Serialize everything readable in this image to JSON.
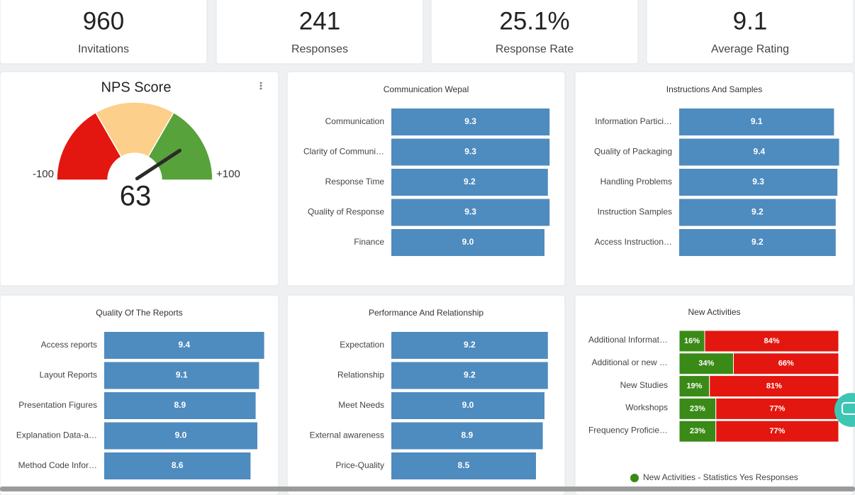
{
  "kpis": [
    {
      "value": "960",
      "label": "Invitations"
    },
    {
      "value": "241",
      "label": "Responses"
    },
    {
      "value": "25.1%",
      "label": "Response Rate"
    },
    {
      "value": "9.1",
      "label": "Average Rating"
    }
  ],
  "chart_data": [
    {
      "type": "gauge",
      "title": "NPS Score",
      "value": 63,
      "min": -100,
      "max": {
        "value": 100,
        "label": "+100"
      },
      "band_colors": [
        "#e3170f",
        "#fccf8a",
        "#57a23a"
      ],
      "needle_color": "#2b2b2b"
    },
    {
      "type": "bar",
      "title": "Communication Wepal",
      "categories": [
        "Communication",
        "Clarity of Communi…",
        "Response Time",
        "Quality of Response",
        "Finance"
      ],
      "values": [
        9.3,
        9.3,
        9.2,
        9.3,
        9.0
      ],
      "value_labels": [
        "9.3",
        "9.3",
        "9.2",
        "9.3",
        "9.0"
      ],
      "color": "#4e8bbf"
    },
    {
      "type": "bar",
      "title": "Instructions And Samples",
      "categories": [
        "Information Partici…",
        "Quality of Packaging",
        "Handling Problems",
        "Instruction Samples",
        "Access Instruction…"
      ],
      "values": [
        9.1,
        9.4,
        9.3,
        9.2,
        9.2
      ],
      "value_labels": [
        "9.1",
        "9.4",
        "9.3",
        "9.2",
        "9.2"
      ],
      "color": "#4e8bbf"
    },
    {
      "type": "bar",
      "title": "Quality Of The Reports",
      "categories": [
        "Access reports",
        "Layout Reports",
        "Presentation Figures",
        "Explanation Data-a…",
        "Method Code Infor…"
      ],
      "values": [
        9.4,
        9.1,
        8.9,
        9.0,
        8.6
      ],
      "value_labels": [
        "9.4",
        "9.1",
        "8.9",
        "9.0",
        "8.6"
      ],
      "color": "#4e8bbf"
    },
    {
      "type": "bar",
      "title": "Performance And Relationship",
      "categories": [
        "Expectation",
        "Relationship",
        "Meet Needs",
        "External awareness",
        "Price-Quality"
      ],
      "values": [
        9.2,
        9.2,
        9.0,
        8.9,
        8.5
      ],
      "value_labels": [
        "9.2",
        "9.2",
        "9.0",
        "8.9",
        "8.5"
      ],
      "color": "#4e8bbf"
    },
    {
      "type": "stacked_bar",
      "title": "New Activities",
      "categories": [
        "Additional Informat…",
        "Additional or new …",
        "New Studies",
        "Workshops",
        "Frequency Proficie…"
      ],
      "series": [
        {
          "name": "New Activities - Statistics Yes Responses",
          "color": "#3a8a17",
          "values": [
            16,
            34,
            19,
            23,
            23
          ],
          "value_labels": [
            "16%",
            "34%",
            "19%",
            "23%",
            "23%"
          ]
        },
        {
          "color": "#e3170f",
          "values": [
            84,
            66,
            81,
            77,
            77
          ],
          "value_labels": [
            "84%",
            "66%",
            "81%",
            "77%",
            "77%"
          ]
        }
      ],
      "legend": "bottom"
    }
  ]
}
